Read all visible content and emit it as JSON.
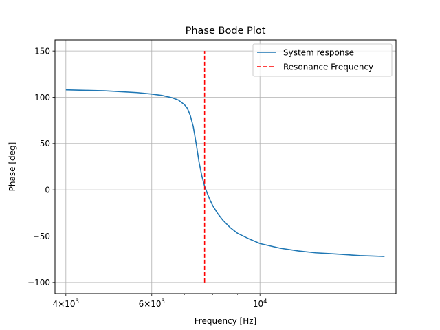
{
  "chart_data": {
    "type": "line",
    "title": "Phase Bode Plot",
    "xlabel": "Frequency [Hz]",
    "ylabel": "Phase [deg]",
    "xscale": "log",
    "xlim": [
      3800,
      19000
    ],
    "ylim": [
      -112,
      162
    ],
    "grid": "major",
    "legend_position": "upper right",
    "x_ticks": [
      {
        "value": 4000,
        "base": "4×10",
        "exp": "3"
      },
      {
        "value": 6000,
        "base": "6×10",
        "exp": "3"
      },
      {
        "value": 10000,
        "base": "10",
        "exp": "4"
      }
    ],
    "y_ticks": [
      -100,
      -50,
      0,
      50,
      100,
      150
    ],
    "series": [
      {
        "name": "System response",
        "color": "#1f77b4",
        "style": "solid",
        "x": [
          4000,
          4400,
          4800,
          5200,
          5600,
          6000,
          6300,
          6600,
          6800,
          7000,
          7100,
          7200,
          7300,
          7400,
          7500,
          7600,
          7700,
          7800,
          7900,
          8000,
          8200,
          8400,
          8700,
          9000,
          9500,
          10000,
          11000,
          12000,
          13000,
          14000,
          15000,
          16000,
          17000,
          18000
        ],
        "y": [
          108,
          107.5,
          107,
          106,
          105,
          103.5,
          102,
          99.5,
          97,
          92,
          88,
          80,
          68,
          50,
          30,
          15,
          4,
          -4,
          -11,
          -17,
          -26,
          -33,
          -41,
          -47,
          -53,
          -58,
          -63,
          -66,
          -68,
          -69,
          -70,
          -71,
          -71.5,
          -72
        ]
      },
      {
        "name": "Resonance Frequency",
        "color": "#ff0000",
        "style": "dashed",
        "x": [
          7700,
          7700
        ],
        "y": [
          -100,
          150
        ]
      }
    ]
  }
}
